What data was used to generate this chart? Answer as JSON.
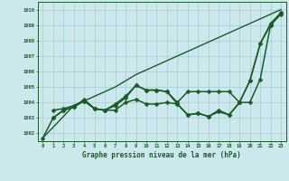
{
  "title": "Graphe pression niveau de la mer (hPa)",
  "bg_color": "#cce8ec",
  "grid_color": "#a0cdd4",
  "line_color": "#1a5c28",
  "xlim": [
    -0.5,
    23.5
  ],
  "ylim": [
    1001.5,
    1010.5
  ],
  "yticks": [
    1002,
    1003,
    1004,
    1005,
    1006,
    1007,
    1008,
    1009,
    1010
  ],
  "xticks": [
    0,
    1,
    2,
    3,
    4,
    5,
    6,
    7,
    8,
    9,
    10,
    11,
    12,
    13,
    14,
    15,
    16,
    17,
    18,
    19,
    20,
    21,
    22,
    23
  ],
  "series": [
    {
      "x": [
        0,
        1,
        2,
        3,
        4,
        5,
        6,
        7,
        8,
        9,
        10,
        11,
        12,
        13,
        14,
        15,
        16,
        17,
        18,
        19,
        20,
        21,
        22,
        23
      ],
      "y": [
        1001.7,
        1002.4,
        1003.1,
        1003.8,
        1004.1,
        1004.4,
        1004.7,
        1005.0,
        1005.4,
        1005.8,
        1006.1,
        1006.4,
        1006.7,
        1007.0,
        1007.3,
        1007.6,
        1007.9,
        1008.2,
        1008.5,
        1008.8,
        1009.1,
        1009.4,
        1009.7,
        1010.0
      ],
      "marker": null,
      "markersize": 0,
      "linewidth": 1.0,
      "linestyle": "-"
    },
    {
      "x": [
        0,
        1,
        2,
        3,
        4,
        5,
        6,
        7,
        8,
        9,
        10,
        11,
        12,
        13,
        14,
        15,
        16,
        17,
        18,
        19,
        20,
        21,
        22,
        23
      ],
      "y": [
        1001.7,
        1003.0,
        1003.5,
        1003.7,
        1004.1,
        1003.6,
        1003.5,
        1003.9,
        1004.4,
        1005.1,
        1004.8,
        1004.8,
        1004.7,
        1004.0,
        1004.7,
        1004.7,
        1004.7,
        1004.7,
        1004.7,
        1004.0,
        1005.4,
        1007.8,
        1009.1,
        1009.8
      ],
      "marker": "D",
      "markersize": 2.5,
      "linewidth": 1.1,
      "linestyle": "-"
    },
    {
      "x": [
        1,
        2,
        3,
        4,
        5,
        6,
        7,
        8,
        9,
        10,
        11,
        12,
        13,
        14,
        15,
        16,
        17,
        18,
        19,
        20,
        21,
        22,
        23
      ],
      "y": [
        1003.0,
        1003.5,
        1003.7,
        1004.2,
        1003.6,
        1003.5,
        1003.8,
        1004.3,
        1005.1,
        1004.8,
        1004.8,
        1004.7,
        1003.9,
        1003.2,
        1003.3,
        1003.1,
        1003.5,
        1003.2,
        1004.0,
        1005.4,
        1007.8,
        1009.0,
        1009.8
      ],
      "marker": "D",
      "markersize": 2.5,
      "linewidth": 1.1,
      "linestyle": "-"
    },
    {
      "x": [
        1,
        2,
        3,
        4,
        5,
        6,
        7,
        8,
        9,
        10,
        11,
        12,
        13,
        14,
        15,
        16,
        17,
        18,
        19,
        20,
        21,
        22,
        23
      ],
      "y": [
        1003.5,
        1003.6,
        1003.8,
        1004.1,
        1003.6,
        1003.5,
        1003.5,
        1004.0,
        1004.2,
        1003.9,
        1003.9,
        1004.0,
        1003.9,
        1003.2,
        1003.3,
        1003.1,
        1003.4,
        1003.2,
        1004.0,
        1004.0,
        1005.5,
        1009.0,
        1009.7
      ],
      "marker": "D",
      "markersize": 2.5,
      "linewidth": 1.1,
      "linestyle": "-"
    }
  ]
}
